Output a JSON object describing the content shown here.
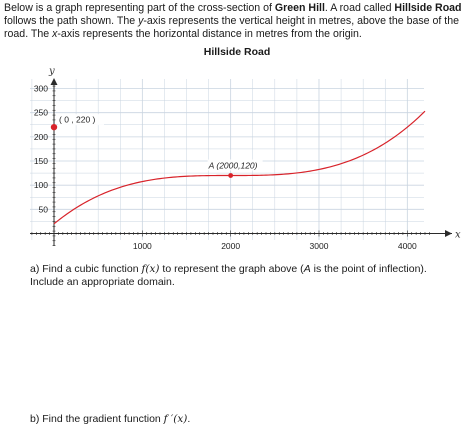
{
  "intro": {
    "p1": "Below is a graph representing part of the cross-section of ",
    "b1": "Green Hill",
    "p2": ". A road called ",
    "b2": "Hillside Road",
    "p3": " follows the path shown. The ",
    "i1": "y",
    "p4": "-axis represents the vertical height in metres, above the base of the road. The ",
    "i2": "x",
    "p5": "-axis represents the horizontal distance in metres from the origin."
  },
  "chart_data": {
    "type": "line",
    "title": "Hillside Road",
    "xlabel": "x",
    "ylabel": "y",
    "xlim": [
      -300,
      4800
    ],
    "ylim": [
      -20,
      330
    ],
    "x_ticks": [
      1000,
      2000,
      3000,
      4000
    ],
    "y_ticks": [
      50,
      100,
      150,
      200,
      250,
      300
    ],
    "x_tick_labels": [
      "1000",
      "2000",
      "3000",
      "4000"
    ],
    "y_tick_labels": [
      "50",
      "100",
      "150",
      "200",
      "250",
      "300"
    ],
    "grid": true,
    "curve": {
      "form": "cubic",
      "inflection": [
        2000,
        120
      ],
      "start": [
        0,
        220
      ],
      "x_range": [
        0,
        4200
      ]
    },
    "points": [
      {
        "x": 0,
        "y": 220,
        "label": "( 0 , 220 )",
        "color": "#d8232a"
      },
      {
        "x": 2000,
        "y": 120,
        "label": "A (2000,120)",
        "color": "#d8232a"
      }
    ],
    "curve_color": "#d8232a",
    "axis_color": "#2b2b2b",
    "grid_color": "#c9d4e0"
  },
  "questions": {
    "a": {
      "t1": "a)  Find a cubic function ",
      "m1": "f(x)",
      "t2": " to represent the graph above (",
      "i1": "A",
      "t3": " is the point of inflection). Include an appropriate domain."
    },
    "b": {
      "t1": "b)  Find the gradient function ",
      "m1": "f ′(x)",
      "t2": "."
    }
  }
}
